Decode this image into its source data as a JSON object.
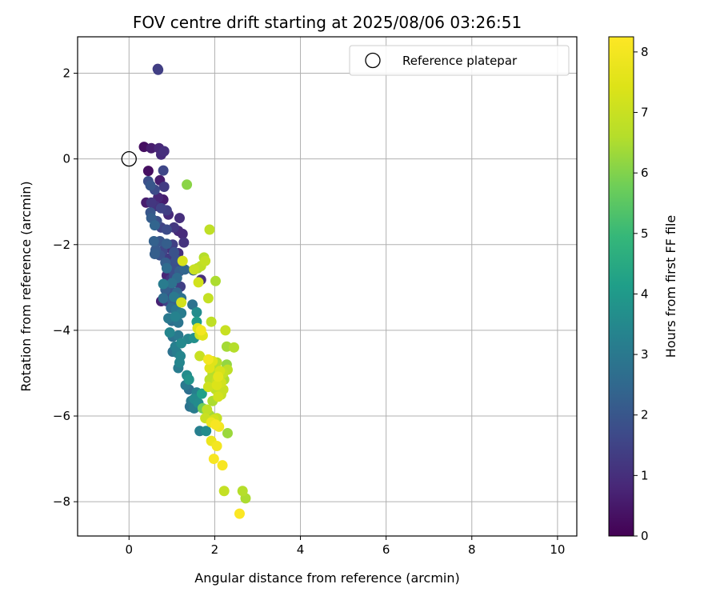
{
  "chart_data": {
    "type": "scatter",
    "title": "FOV centre drift starting at 2025/08/06 03:26:51",
    "xlabel": "Angular distance from reference (arcmin)",
    "ylabel": "Rotation from reference (arcmin)",
    "xlim": [
      -1.2,
      10.45
    ],
    "ylim": [
      -8.8,
      2.85
    ],
    "xticks": [
      0,
      2,
      4,
      6,
      8,
      10
    ],
    "yticks": [
      2,
      0,
      -2,
      -4,
      -6,
      -8
    ],
    "grid": true,
    "legend": {
      "position": "top-right",
      "entries": [
        {
          "label": "Reference platepar",
          "marker": "open-circle"
        }
      ]
    },
    "reference_point": {
      "x": 0,
      "y": 0
    },
    "colorbar": {
      "label": "Hours from first FF file",
      "range": [
        0,
        8.25
      ],
      "ticks": [
        0,
        1,
        2,
        3,
        4,
        5,
        6,
        7,
        8
      ],
      "colormap": "viridis"
    },
    "points": [
      {
        "x": 0.67,
        "y": 2.1,
        "h": 1.3
      },
      {
        "x": 0.68,
        "y": 2.08,
        "h": 1.4
      },
      {
        "x": 0.35,
        "y": 0.28,
        "h": 0.3
      },
      {
        "x": 0.52,
        "y": 0.25,
        "h": 0.6
      },
      {
        "x": 0.7,
        "y": 0.25,
        "h": 0.8
      },
      {
        "x": 0.82,
        "y": 0.18,
        "h": 1.0
      },
      {
        "x": 0.75,
        "y": 0.1,
        "h": 0.9
      },
      {
        "x": 0.8,
        "y": -0.27,
        "h": 1.6
      },
      {
        "x": 0.45,
        "y": -0.28,
        "h": 0.3
      },
      {
        "x": 0.45,
        "y": -0.52,
        "h": 1.8
      },
      {
        "x": 0.5,
        "y": -0.62,
        "h": 2.0
      },
      {
        "x": 0.72,
        "y": -0.5,
        "h": 0.6
      },
      {
        "x": 0.6,
        "y": -0.72,
        "h": 1.7
      },
      {
        "x": 0.82,
        "y": -0.65,
        "h": 1.3
      },
      {
        "x": 1.35,
        "y": -0.6,
        "h": 6.1
      },
      {
        "x": 0.68,
        "y": -0.9,
        "h": 0.8
      },
      {
        "x": 0.8,
        "y": -0.95,
        "h": 0.6
      },
      {
        "x": 0.4,
        "y": -1.02,
        "h": 0.6
      },
      {
        "x": 0.52,
        "y": -1.02,
        "h": 1.2
      },
      {
        "x": 0.62,
        "y": -1.1,
        "h": 1.1
      },
      {
        "x": 0.75,
        "y": -1.15,
        "h": 1.5
      },
      {
        "x": 0.88,
        "y": -1.2,
        "h": 1.4
      },
      {
        "x": 0.5,
        "y": -1.25,
        "h": 2.0
      },
      {
        "x": 0.92,
        "y": -1.3,
        "h": 0.9
      },
      {
        "x": 1.18,
        "y": -1.38,
        "h": 1.0
      },
      {
        "x": 0.52,
        "y": -1.38,
        "h": 2.2
      },
      {
        "x": 0.65,
        "y": -1.45,
        "h": 1.8
      },
      {
        "x": 0.6,
        "y": -1.55,
        "h": 2.4
      },
      {
        "x": 0.75,
        "y": -1.6,
        "h": 1.5
      },
      {
        "x": 0.88,
        "y": -1.65,
        "h": 1.7
      },
      {
        "x": 1.05,
        "y": -1.6,
        "h": 1.2
      },
      {
        "x": 1.15,
        "y": -1.68,
        "h": 0.9
      },
      {
        "x": 1.25,
        "y": -1.75,
        "h": 0.9
      },
      {
        "x": 1.88,
        "y": -1.65,
        "h": 6.8
      },
      {
        "x": 0.58,
        "y": -1.92,
        "h": 2.3
      },
      {
        "x": 0.72,
        "y": -1.92,
        "h": 2.0
      },
      {
        "x": 0.88,
        "y": -1.98,
        "h": 2.2
      },
      {
        "x": 1.02,
        "y": -2.0,
        "h": 1.4
      },
      {
        "x": 1.28,
        "y": -1.95,
        "h": 1.1
      },
      {
        "x": 0.95,
        "y": -2.08,
        "h": 1.0
      },
      {
        "x": 0.62,
        "y": -2.12,
        "h": 2.1
      },
      {
        "x": 0.78,
        "y": -2.15,
        "h": 1.6
      },
      {
        "x": 1.05,
        "y": -2.18,
        "h": 1.9
      },
      {
        "x": 1.15,
        "y": -2.2,
        "h": 1.0
      },
      {
        "x": 0.6,
        "y": -2.22,
        "h": 2.2
      },
      {
        "x": 0.72,
        "y": -2.25,
        "h": 1.9
      },
      {
        "x": 0.9,
        "y": -2.32,
        "h": 1.3
      },
      {
        "x": 1.1,
        "y": -2.35,
        "h": 1.9
      },
      {
        "x": 0.85,
        "y": -2.42,
        "h": 2.2
      },
      {
        "x": 1.02,
        "y": -2.45,
        "h": 1.8
      },
      {
        "x": 1.2,
        "y": -2.42,
        "h": 1.7
      },
      {
        "x": 1.25,
        "y": -2.38,
        "h": 7.3
      },
      {
        "x": 1.75,
        "y": -2.3,
        "h": 6.6
      },
      {
        "x": 1.78,
        "y": -2.38,
        "h": 6.9
      },
      {
        "x": 1.68,
        "y": -2.5,
        "h": 6.8
      },
      {
        "x": 1.6,
        "y": -2.55,
        "h": 6.5
      },
      {
        "x": 1.52,
        "y": -2.58,
        "h": 7.0
      },
      {
        "x": 1.5,
        "y": -2.6,
        "h": 2.3
      },
      {
        "x": 0.88,
        "y": -2.55,
        "h": 2.6
      },
      {
        "x": 1.02,
        "y": -2.6,
        "h": 1.8
      },
      {
        "x": 1.18,
        "y": -2.62,
        "h": 2.2
      },
      {
        "x": 1.3,
        "y": -2.58,
        "h": 2.4
      },
      {
        "x": 0.88,
        "y": -2.72,
        "h": 0.8
      },
      {
        "x": 1.05,
        "y": -2.75,
        "h": 1.7
      },
      {
        "x": 0.98,
        "y": -2.8,
        "h": 1.2
      },
      {
        "x": 1.12,
        "y": -2.78,
        "h": 2.6
      },
      {
        "x": 1.68,
        "y": -2.82,
        "h": 1.0
      },
      {
        "x": 1.62,
        "y": -2.88,
        "h": 7.2
      },
      {
        "x": 2.02,
        "y": -2.85,
        "h": 6.5
      },
      {
        "x": 0.8,
        "y": -2.92,
        "h": 3.1
      },
      {
        "x": 1.0,
        "y": -2.9,
        "h": 2.8
      },
      {
        "x": 0.92,
        "y": -2.98,
        "h": 1.5
      },
      {
        "x": 1.2,
        "y": -2.98,
        "h": 1.4
      },
      {
        "x": 0.85,
        "y": -3.05,
        "h": 2.2
      },
      {
        "x": 0.98,
        "y": -3.08,
        "h": 1.9
      },
      {
        "x": 1.12,
        "y": -3.12,
        "h": 2.5
      },
      {
        "x": 0.9,
        "y": -3.18,
        "h": 1.6
      },
      {
        "x": 0.8,
        "y": -3.25,
        "h": 2.6
      },
      {
        "x": 1.05,
        "y": -3.22,
        "h": 3.0
      },
      {
        "x": 1.22,
        "y": -3.25,
        "h": 2.8
      },
      {
        "x": 0.75,
        "y": -3.32,
        "h": 0.7
      },
      {
        "x": 0.88,
        "y": -3.32,
        "h": 1.5
      },
      {
        "x": 1.02,
        "y": -3.35,
        "h": 2.3
      },
      {
        "x": 1.22,
        "y": -3.35,
        "h": 7.2
      },
      {
        "x": 1.85,
        "y": -3.25,
        "h": 6.9
      },
      {
        "x": 1.48,
        "y": -3.4,
        "h": 2.8
      },
      {
        "x": 0.98,
        "y": -3.48,
        "h": 2.6
      },
      {
        "x": 1.1,
        "y": -3.52,
        "h": 2.9
      },
      {
        "x": 1.22,
        "y": -3.6,
        "h": 3.1
      },
      {
        "x": 1.58,
        "y": -3.58,
        "h": 3.6
      },
      {
        "x": 1.08,
        "y": -3.68,
        "h": 3.3
      },
      {
        "x": 0.92,
        "y": -3.72,
        "h": 3.0
      },
      {
        "x": 1.0,
        "y": -3.78,
        "h": 2.7
      },
      {
        "x": 1.15,
        "y": -3.82,
        "h": 2.9
      },
      {
        "x": 1.58,
        "y": -3.8,
        "h": 4.0
      },
      {
        "x": 1.92,
        "y": -3.8,
        "h": 6.8
      },
      {
        "x": 1.6,
        "y": -3.95,
        "h": 7.4
      },
      {
        "x": 1.68,
        "y": -4.0,
        "h": 8.0
      },
      {
        "x": 1.65,
        "y": -4.1,
        "h": 7.1
      },
      {
        "x": 1.72,
        "y": -4.12,
        "h": 7.5
      },
      {
        "x": 2.25,
        "y": -4.0,
        "h": 7.0
      },
      {
        "x": 0.95,
        "y": -4.05,
        "h": 3.4
      },
      {
        "x": 1.02,
        "y": -4.15,
        "h": 2.8
      },
      {
        "x": 1.15,
        "y": -4.12,
        "h": 3.0
      },
      {
        "x": 1.38,
        "y": -4.2,
        "h": 3.4
      },
      {
        "x": 1.52,
        "y": -4.18,
        "h": 3.7
      },
      {
        "x": 1.22,
        "y": -4.3,
        "h": 3.5
      },
      {
        "x": 1.08,
        "y": -4.38,
        "h": 3.2
      },
      {
        "x": 2.28,
        "y": -4.38,
        "h": 6.4
      },
      {
        "x": 2.45,
        "y": -4.4,
        "h": 6.6
      },
      {
        "x": 1.02,
        "y": -4.5,
        "h": 2.8
      },
      {
        "x": 1.12,
        "y": -4.52,
        "h": 3.1
      },
      {
        "x": 1.2,
        "y": -4.6,
        "h": 3.4
      },
      {
        "x": 1.65,
        "y": -4.6,
        "h": 7.0
      },
      {
        "x": 1.85,
        "y": -4.68,
        "h": 8.0
      },
      {
        "x": 1.95,
        "y": -4.72,
        "h": 7.5
      },
      {
        "x": 2.05,
        "y": -4.75,
        "h": 6.6
      },
      {
        "x": 1.18,
        "y": -4.75,
        "h": 3.4
      },
      {
        "x": 2.28,
        "y": -4.8,
        "h": 6.2
      },
      {
        "x": 1.15,
        "y": -4.88,
        "h": 3.1
      },
      {
        "x": 1.88,
        "y": -4.88,
        "h": 7.5
      },
      {
        "x": 2.02,
        "y": -4.9,
        "h": 6.5
      },
      {
        "x": 2.12,
        "y": -4.95,
        "h": 7.3
      },
      {
        "x": 2.3,
        "y": -4.92,
        "h": 6.8
      },
      {
        "x": 2.2,
        "y": -5.0,
        "h": 6.9
      },
      {
        "x": 1.95,
        "y": -5.02,
        "h": 6.6
      },
      {
        "x": 2.08,
        "y": -5.08,
        "h": 7.6
      },
      {
        "x": 1.35,
        "y": -5.05,
        "h": 3.6
      },
      {
        "x": 1.4,
        "y": -5.15,
        "h": 3.8
      },
      {
        "x": 1.88,
        "y": -5.15,
        "h": 6.7
      },
      {
        "x": 2.05,
        "y": -5.18,
        "h": 7.0
      },
      {
        "x": 2.15,
        "y": -5.22,
        "h": 7.2
      },
      {
        "x": 2.22,
        "y": -5.15,
        "h": 6.5
      },
      {
        "x": 2.05,
        "y": -5.28,
        "h": 7.4
      },
      {
        "x": 1.32,
        "y": -5.28,
        "h": 3.0
      },
      {
        "x": 1.85,
        "y": -5.32,
        "h": 7.1
      },
      {
        "x": 1.4,
        "y": -5.38,
        "h": 2.7
      },
      {
        "x": 2.02,
        "y": -5.38,
        "h": 6.8
      },
      {
        "x": 2.2,
        "y": -5.38,
        "h": 7.0
      },
      {
        "x": 1.58,
        "y": -5.45,
        "h": 3.2
      },
      {
        "x": 1.7,
        "y": -5.48,
        "h": 4.2
      },
      {
        "x": 2.15,
        "y": -5.5,
        "h": 6.9
      },
      {
        "x": 2.08,
        "y": -5.55,
        "h": 7.2
      },
      {
        "x": 1.52,
        "y": -5.6,
        "h": 3.5
      },
      {
        "x": 1.45,
        "y": -5.65,
        "h": 3.0
      },
      {
        "x": 1.62,
        "y": -5.7,
        "h": 3.6
      },
      {
        "x": 1.95,
        "y": -5.65,
        "h": 6.5
      },
      {
        "x": 1.42,
        "y": -5.78,
        "h": 2.8
      },
      {
        "x": 1.52,
        "y": -5.82,
        "h": 3.1
      },
      {
        "x": 1.82,
        "y": -5.85,
        "h": 6.8
      },
      {
        "x": 1.72,
        "y": -5.82,
        "h": 5.8
      },
      {
        "x": 1.88,
        "y": -5.98,
        "h": 6.4
      },
      {
        "x": 1.78,
        "y": -6.05,
        "h": 7.0
      },
      {
        "x": 1.98,
        "y": -6.08,
        "h": 7.2
      },
      {
        "x": 2.05,
        "y": -6.05,
        "h": 6.9
      },
      {
        "x": 1.92,
        "y": -6.15,
        "h": 7.8
      },
      {
        "x": 2.02,
        "y": -6.2,
        "h": 8.1
      },
      {
        "x": 2.1,
        "y": -6.25,
        "h": 8.0
      },
      {
        "x": 1.65,
        "y": -6.35,
        "h": 3.2
      },
      {
        "x": 1.8,
        "y": -6.35,
        "h": 3.6
      },
      {
        "x": 2.3,
        "y": -6.4,
        "h": 6.3
      },
      {
        "x": 1.92,
        "y": -6.58,
        "h": 7.8
      },
      {
        "x": 2.05,
        "y": -6.7,
        "h": 8.0
      },
      {
        "x": 1.98,
        "y": -7.0,
        "h": 8.1
      },
      {
        "x": 2.18,
        "y": -7.15,
        "h": 8.1
      },
      {
        "x": 2.22,
        "y": -7.75,
        "h": 6.9
      },
      {
        "x": 2.65,
        "y": -7.75,
        "h": 6.6
      },
      {
        "x": 2.72,
        "y": -7.92,
        "h": 6.5
      },
      {
        "x": 2.58,
        "y": -8.28,
        "h": 8.2
      }
    ]
  }
}
